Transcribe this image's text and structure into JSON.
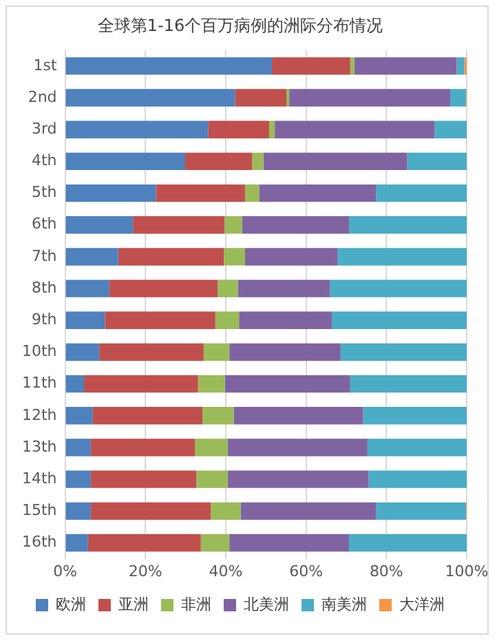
{
  "chart_data": {
    "type": "bar",
    "orientation": "horizontal",
    "stacked": true,
    "title": "全球第1-16个百万病例的洲际分布情况",
    "categories": [
      "1st",
      "2nd",
      "3rd",
      "4th",
      "5th",
      "6th",
      "7th",
      "8th",
      "9th",
      "10th",
      "11th",
      "12th",
      "13th",
      "14th",
      "15th",
      "16th"
    ],
    "series": [
      {
        "name": "欧洲",
        "color": "#4f81bd",
        "values": [
          51.5,
          42.3,
          35.6,
          29.9,
          22.6,
          16.9,
          13.2,
          11,
          9.9,
          8.5,
          4.7,
          6.9,
          6.4,
          6.4,
          6.4,
          5.7
        ]
      },
      {
        "name": "亚洲",
        "color": "#c0504d",
        "values": [
          19.5,
          12.8,
          15.2,
          16.7,
          22.2,
          22.8,
          26.3,
          27,
          27.5,
          26,
          28.4,
          27.3,
          25.9,
          26.3,
          29.9,
          28.1
        ]
      },
      {
        "name": "非洲",
        "color": "#9bbb59",
        "values": [
          1,
          0.7,
          1.4,
          2.8,
          3.5,
          4.4,
          5.3,
          5,
          5.9,
          6.4,
          6.7,
          7.8,
          8.2,
          7.8,
          7.4,
          7.1
        ]
      },
      {
        "name": "北美洲",
        "color": "#8064a2",
        "values": [
          25.5,
          40.1,
          39.8,
          35.8,
          29.1,
          26.6,
          23,
          23,
          23.1,
          27.7,
          31.2,
          32.2,
          34.8,
          35.1,
          33.7,
          29.8
        ]
      },
      {
        "name": "南美洲",
        "color": "#4bacc6",
        "values": [
          1.9,
          3.9,
          8,
          14.8,
          22.6,
          29.3,
          32.2,
          34,
          33.6,
          31.4,
          29,
          25.8,
          24.7,
          24.4,
          22.4,
          29.3
        ]
      },
      {
        "name": "大洋洲",
        "color": "#f79646",
        "values": [
          0.6,
          0.2,
          0,
          0,
          0,
          0,
          0,
          0,
          0,
          0,
          0,
          0,
          0,
          0,
          0.2,
          0
        ]
      }
    ],
    "xlim": [
      0,
      100
    ],
    "xticks": [
      {
        "value": 0,
        "label": "0%"
      },
      {
        "value": 20,
        "label": "20%"
      },
      {
        "value": 40,
        "label": "40%"
      },
      {
        "value": 60,
        "label": "60%"
      },
      {
        "value": 80,
        "label": "80%"
      },
      {
        "value": 100,
        "label": "100%"
      }
    ],
    "grid": "x",
    "legend": "bottom"
  }
}
